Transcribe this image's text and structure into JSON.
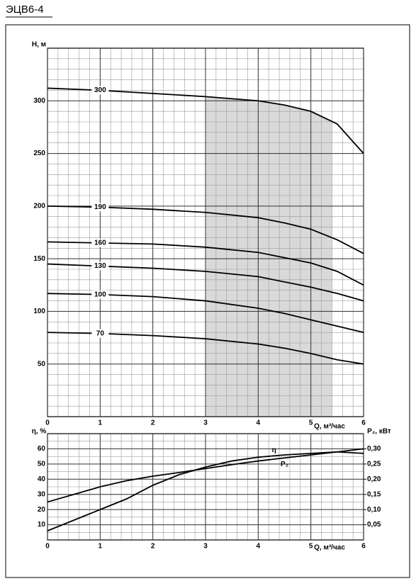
{
  "title": "ЭЦВ6-4",
  "chart_data": [
    {
      "type": "line",
      "y_label": "H, м",
      "x_label": "Q, м³/час",
      "x": [
        0,
        1,
        2,
        3,
        4,
        4.5,
        5,
        5.5,
        6
      ],
      "xlim": [
        0,
        6
      ],
      "xticks": [
        0,
        1,
        2,
        3,
        4,
        5,
        6
      ],
      "ylim": [
        0,
        350
      ],
      "yticks": [
        50,
        100,
        150,
        200,
        250,
        300
      ],
      "grid": true,
      "minor_grid": true,
      "shaded_range": [
        3,
        5.4
      ],
      "shade_color": "#d9d9d9",
      "series": [
        {
          "name": "300",
          "color": "#000000",
          "values": [
            312,
            310,
            307,
            304,
            300,
            296,
            290,
            278,
            250
          ]
        },
        {
          "name": "190",
          "color": "#000000",
          "values": [
            200,
            199,
            197,
            194,
            189,
            184,
            178,
            168,
            155
          ]
        },
        {
          "name": "160",
          "color": "#000000",
          "values": [
            166,
            165,
            164,
            161,
            156,
            151,
            146,
            138,
            125
          ]
        },
        {
          "name": "130",
          "color": "#000000",
          "values": [
            145,
            143,
            141,
            138,
            133,
            128,
            123,
            117,
            110
          ]
        },
        {
          "name": "100",
          "color": "#000000",
          "values": [
            117,
            116,
            114,
            110,
            103,
            98,
            92,
            86,
            80
          ]
        },
        {
          "name": "70",
          "color": "#000000",
          "values": [
            80,
            79,
            77,
            74,
            69,
            65,
            60,
            54,
            50
          ]
        }
      ]
    },
    {
      "type": "line",
      "y_label": "η, %",
      "y2_label": "P₂, кВт",
      "x_label": "Q, м³/час",
      "x": [
        0,
        0.5,
        1,
        1.5,
        2,
        2.5,
        3,
        3.5,
        4,
        4.5,
        5,
        5.5,
        6
      ],
      "xlim": [
        0,
        6
      ],
      "xticks": [
        0,
        1,
        2,
        3,
        4,
        5,
        6
      ],
      "ylim": [
        0,
        70
      ],
      "yticks": [
        10,
        20,
        30,
        40,
        50,
        60
      ],
      "y2lim": [
        0,
        0.35
      ],
      "y2ticks": [
        {
          "value": 0.05,
          "label": "0,05"
        },
        {
          "value": 0.1,
          "label": "0,10"
        },
        {
          "value": 0.15,
          "label": "0,15"
        },
        {
          "value": 0.2,
          "label": "0,20"
        },
        {
          "value": 0.25,
          "label": "0,25"
        },
        {
          "value": 0.3,
          "label": "0,30"
        }
      ],
      "grid": true,
      "minor_grid": true,
      "series": [
        {
          "name": "η",
          "color": "#000000",
          "values": [
            6,
            13,
            20,
            27,
            36,
            43,
            48,
            52,
            54.5,
            56,
            57,
            58,
            57
          ]
        },
        {
          "name": "P₂",
          "color": "#000000",
          "axis": "y2",
          "values": [
            0.125,
            0.15,
            0.175,
            0.195,
            0.21,
            0.222,
            0.235,
            0.248,
            0.26,
            0.27,
            0.28,
            0.29,
            0.3
          ]
        }
      ]
    }
  ]
}
